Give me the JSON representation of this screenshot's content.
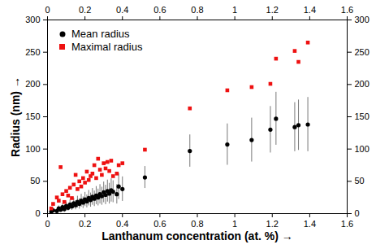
{
  "chart_data": {
    "type": "scatter",
    "xlabel": "Lanthanum concentration (at. %)",
    "ylabel": "Radius (nm)",
    "xlim": [
      0,
      1.6
    ],
    "xticks": [
      0,
      0.2,
      0.4,
      0.6,
      0.8,
      1,
      1.2,
      1.4,
      1.6
    ],
    "ylim": [
      0,
      300
    ],
    "yticks": [
      0,
      50,
      100,
      150,
      200,
      250,
      300
    ],
    "grid": false,
    "legend": "upper left",
    "x": [
      0.02,
      0.03,
      0.05,
      0.06,
      0.07,
      0.08,
      0.09,
      0.1,
      0.11,
      0.12,
      0.13,
      0.14,
      0.15,
      0.16,
      0.17,
      0.18,
      0.19,
      0.2,
      0.21,
      0.22,
      0.23,
      0.24,
      0.25,
      0.26,
      0.27,
      0.28,
      0.29,
      0.3,
      0.31,
      0.32,
      0.33,
      0.34,
      0.35,
      0.37,
      0.38,
      0.4,
      0.52,
      0.76,
      0.96,
      1.09,
      1.19,
      1.22,
      1.32,
      1.34,
      1.39
    ],
    "series": [
      {
        "name": "Mean radius",
        "color": "#000000",
        "marker": "circle",
        "values": [
          3,
          5,
          4,
          8,
          6,
          10,
          7,
          12,
          9,
          14,
          11,
          16,
          13,
          18,
          15,
          20,
          17,
          22,
          19,
          24,
          21,
          26,
          23,
          28,
          25,
          30,
          27,
          33,
          29,
          35,
          31,
          36,
          34,
          30,
          42,
          38,
          56,
          97,
          107,
          114,
          130,
          147,
          134,
          137,
          138
        ],
        "error": [
          2,
          3,
          3,
          4,
          4,
          5,
          5,
          6,
          5,
          7,
          6,
          8,
          7,
          9,
          8,
          10,
          9,
          11,
          10,
          12,
          11,
          13,
          12,
          14,
          13,
          15,
          14,
          16,
          15,
          17,
          16,
          18,
          17,
          15,
          20,
          19,
          17,
          25,
          32,
          34,
          36,
          41,
          38,
          39,
          42
        ]
      },
      {
        "name": "Maximal radius",
        "color": "#ee1111",
        "marker": "square",
        "values": [
          8,
          15,
          25,
          20,
          72,
          30,
          18,
          35,
          28,
          40,
          24,
          45,
          60,
          38,
          50,
          42,
          55,
          48,
          65,
          52,
          58,
          62,
          75,
          55,
          85,
          68,
          60,
          78,
          70,
          80,
          66,
          82,
          58,
          62,
          75,
          78,
          99,
          163,
          191,
          196,
          201,
          240,
          252,
          235,
          265
        ]
      }
    ]
  }
}
